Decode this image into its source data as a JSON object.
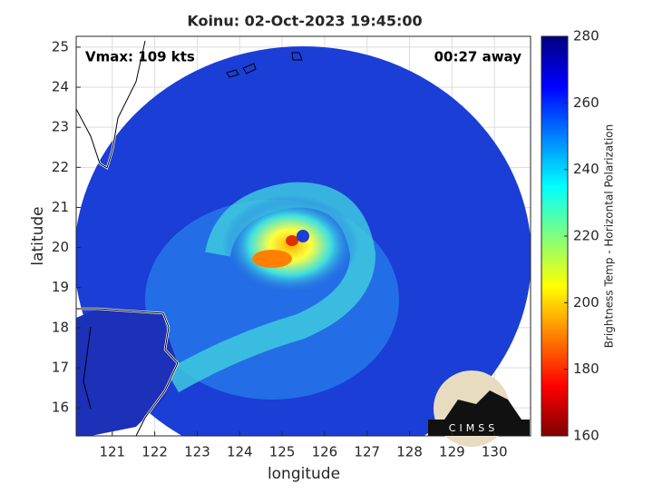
{
  "chart_data": {
    "type": "image",
    "title": "Koinu: 02-Oct-2023 19:45:00",
    "xlabel": "longitude",
    "ylabel": "latitude",
    "annotations": [
      "Vmax: 109 kts",
      "00:27 away"
    ],
    "xlim": [
      120.15,
      130.85
    ],
    "xticks": [
      121,
      122,
      123,
      124,
      125,
      126,
      127,
      128,
      129,
      130
    ],
    "ylim": [
      15.3,
      25.27
    ],
    "yticks": [
      16,
      17,
      18,
      19,
      20,
      21,
      22,
      23,
      24,
      25
    ],
    "grid": true,
    "colorbar": {
      "label": "Brightness Temp - Horizontal Polarization",
      "lim": [
        160,
        280
      ],
      "ticks": [
        160,
        180,
        200,
        220,
        240,
        260,
        280
      ],
      "colors": [
        "#800000",
        "#ff0000",
        "#ff8000",
        "#ffff00",
        "#80ff80",
        "#00ffff",
        "#0080ff",
        "#0000ff",
        "#000080"
      ]
    },
    "logo": "CIMSS"
  }
}
